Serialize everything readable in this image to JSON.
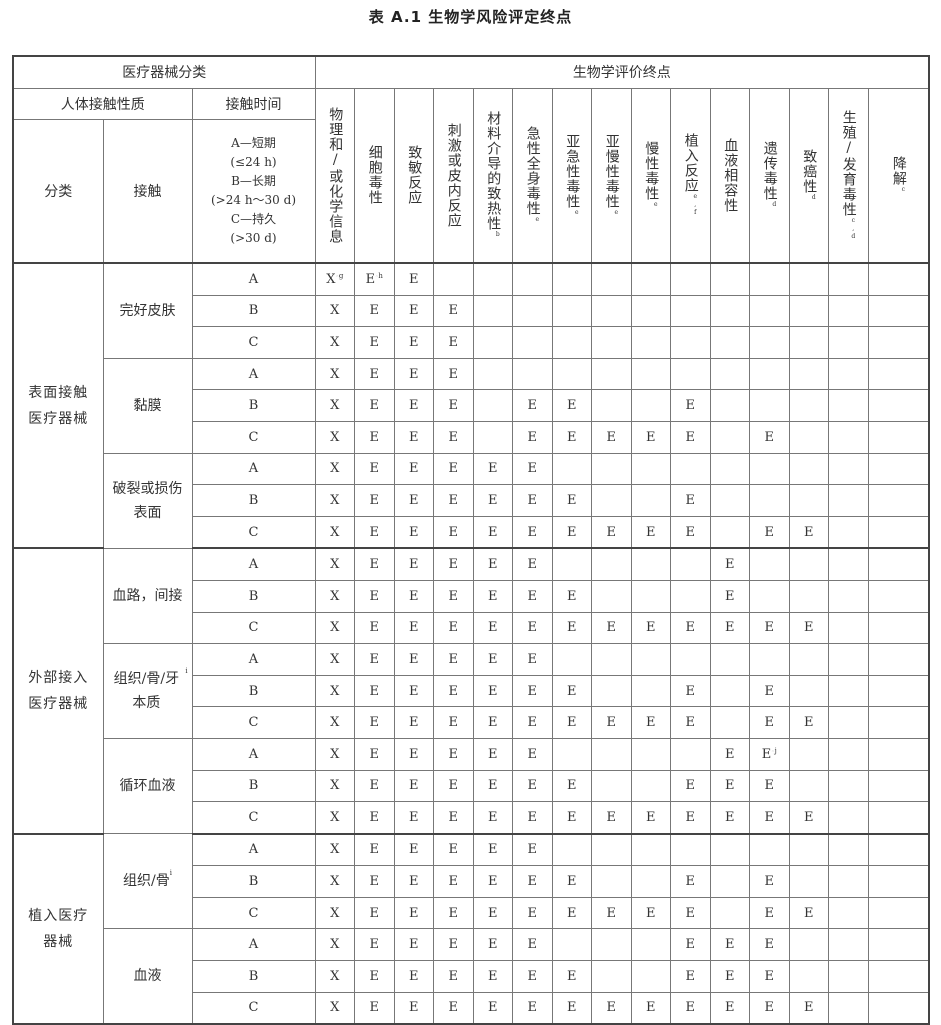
{
  "title": "表 A.1   生物学风险评定终点",
  "header": {
    "device_category": "医疗器械分类",
    "endpoints_title": "生物学评价终点",
    "body_contact": "人体接触性质",
    "contact_duration": "接触时间",
    "category": "分类",
    "contact": "接触",
    "duration_lines": [
      "A—短期",
      "(≤24 h)",
      "B—长期",
      "(>24 h～30 d)",
      "C—持久",
      "(>30 d)"
    ],
    "endpoints": [
      {
        "label": "物理和/或化学信息",
        "note": ""
      },
      {
        "label": "细胞毒性",
        "note": ""
      },
      {
        "label": "致敏反应",
        "note": ""
      },
      {
        "label": "刺激或皮内反应",
        "note": ""
      },
      {
        "label": "材料介导的致热性",
        "note": "b"
      },
      {
        "label": "急性全身毒性",
        "note": "e"
      },
      {
        "label": "亚急性毒性",
        "note": "e"
      },
      {
        "label": "亚慢性毒性",
        "note": "e"
      },
      {
        "label": "慢性毒性",
        "note": "e"
      },
      {
        "label": "植入反应",
        "note": "e,f"
      },
      {
        "label": "血液相容性",
        "note": ""
      },
      {
        "label": "遗传毒性",
        "note": "d"
      },
      {
        "label": "致癌性",
        "note": "d"
      },
      {
        "label": "生殖/发育毒性",
        "note": "c,d"
      },
      {
        "label": "降解",
        "note": "c"
      }
    ]
  },
  "groups": [
    {
      "category": "表面接触医疗器械",
      "contacts": [
        {
          "name": "完好皮肤",
          "note": "",
          "rows": [
            {
              "duration": "A",
              "cells": [
                "X^g",
                "E^h",
                "E",
                "",
                "",
                "",
                "",
                "",
                "",
                "",
                "",
                "",
                "",
                "",
                ""
              ]
            },
            {
              "duration": "B",
              "cells": [
                "X",
                "E",
                "E",
                "E",
                "",
                "",
                "",
                "",
                "",
                "",
                "",
                "",
                "",
                "",
                ""
              ]
            },
            {
              "duration": "C",
              "cells": [
                "X",
                "E",
                "E",
                "E",
                "",
                "",
                "",
                "",
                "",
                "",
                "",
                "",
                "",
                "",
                ""
              ]
            }
          ]
        },
        {
          "name": "黏膜",
          "note": "",
          "rows": [
            {
              "duration": "A",
              "cells": [
                "X",
                "E",
                "E",
                "E",
                "",
                "",
                "",
                "",
                "",
                "",
                "",
                "",
                "",
                "",
                ""
              ]
            },
            {
              "duration": "B",
              "cells": [
                "X",
                "E",
                "E",
                "E",
                "",
                "E",
                "E",
                "",
                "",
                "E",
                "",
                "",
                "",
                "",
                ""
              ]
            },
            {
              "duration": "C",
              "cells": [
                "X",
                "E",
                "E",
                "E",
                "",
                "E",
                "E",
                "E",
                "E",
                "E",
                "",
                "E",
                "",
                "",
                ""
              ]
            }
          ]
        },
        {
          "name": "破裂或损伤表面",
          "note": "",
          "rows": [
            {
              "duration": "A",
              "cells": [
                "X",
                "E",
                "E",
                "E",
                "E",
                "E",
                "",
                "",
                "",
                "",
                "",
                "",
                "",
                "",
                ""
              ]
            },
            {
              "duration": "B",
              "cells": [
                "X",
                "E",
                "E",
                "E",
                "E",
                "E",
                "E",
                "",
                "",
                "E",
                "",
                "",
                "",
                "",
                ""
              ]
            },
            {
              "duration": "C",
              "cells": [
                "X",
                "E",
                "E",
                "E",
                "E",
                "E",
                "E",
                "E",
                "E",
                "E",
                "",
                "E",
                "E",
                "",
                ""
              ]
            }
          ]
        }
      ]
    },
    {
      "category": "外部接入医疗器械",
      "contacts": [
        {
          "name": "血路，间接",
          "note": "",
          "rows": [
            {
              "duration": "A",
              "cells": [
                "X",
                "E",
                "E",
                "E",
                "E",
                "E",
                "",
                "",
                "",
                "",
                "E",
                "",
                "",
                "",
                ""
              ]
            },
            {
              "duration": "B",
              "cells": [
                "X",
                "E",
                "E",
                "E",
                "E",
                "E",
                "E",
                "",
                "",
                "",
                "E",
                "",
                "",
                "",
                ""
              ]
            },
            {
              "duration": "C",
              "cells": [
                "X",
                "E",
                "E",
                "E",
                "E",
                "E",
                "E",
                "E",
                "E",
                "E",
                "E",
                "E",
                "E",
                "",
                ""
              ]
            }
          ]
        },
        {
          "name": "组织/骨/牙本质",
          "note": "i",
          "rows": [
            {
              "duration": "A",
              "cells": [
                "X",
                "E",
                "E",
                "E",
                "E",
                "E",
                "",
                "",
                "",
                "",
                "",
                "",
                "",
                "",
                ""
              ]
            },
            {
              "duration": "B",
              "cells": [
                "X",
                "E",
                "E",
                "E",
                "E",
                "E",
                "E",
                "",
                "",
                "E",
                "",
                "E",
                "",
                "",
                ""
              ]
            },
            {
              "duration": "C",
              "cells": [
                "X",
                "E",
                "E",
                "E",
                "E",
                "E",
                "E",
                "E",
                "E",
                "E",
                "",
                "E",
                "E",
                "",
                ""
              ]
            }
          ]
        },
        {
          "name": "循环血液",
          "note": "",
          "rows": [
            {
              "duration": "A",
              "cells": [
                "X",
                "E",
                "E",
                "E",
                "E",
                "E",
                "",
                "",
                "",
                "",
                "E",
                "E^j",
                "",
                "",
                ""
              ]
            },
            {
              "duration": "B",
              "cells": [
                "X",
                "E",
                "E",
                "E",
                "E",
                "E",
                "E",
                "",
                "",
                "E",
                "E",
                "E",
                "",
                "",
                ""
              ]
            },
            {
              "duration": "C",
              "cells": [
                "X",
                "E",
                "E",
                "E",
                "E",
                "E",
                "E",
                "E",
                "E",
                "E",
                "E",
                "E",
                "E",
                "",
                ""
              ]
            }
          ]
        }
      ]
    },
    {
      "category": "植入医疗器械",
      "contacts": [
        {
          "name": "组织/骨",
          "note": "i",
          "rows": [
            {
              "duration": "A",
              "cells": [
                "X",
                "E",
                "E",
                "E",
                "E",
                "E",
                "",
                "",
                "",
                "",
                "",
                "",
                "",
                "",
                ""
              ]
            },
            {
              "duration": "B",
              "cells": [
                "X",
                "E",
                "E",
                "E",
                "E",
                "E",
                "E",
                "",
                "",
                "E",
                "",
                "E",
                "",
                "",
                ""
              ]
            },
            {
              "duration": "C",
              "cells": [
                "X",
                "E",
                "E",
                "E",
                "E",
                "E",
                "E",
                "E",
                "E",
                "E",
                "",
                "E",
                "E",
                "",
                ""
              ]
            }
          ]
        },
        {
          "name": "血液",
          "note": "",
          "rows": [
            {
              "duration": "A",
              "cells": [
                "X",
                "E",
                "E",
                "E",
                "E",
                "E",
                "",
                "",
                "",
                "E",
                "E",
                "E",
                "",
                "",
                ""
              ]
            },
            {
              "duration": "B",
              "cells": [
                "X",
                "E",
                "E",
                "E",
                "E",
                "E",
                "E",
                "",
                "",
                "E",
                "E",
                "E",
                "",
                "",
                ""
              ]
            },
            {
              "duration": "C",
              "cells": [
                "X",
                "E",
                "E",
                "E",
                "E",
                "E",
                "E",
                "E",
                "E",
                "E",
                "E",
                "E",
                "E",
                "",
                ""
              ]
            }
          ]
        }
      ]
    }
  ]
}
